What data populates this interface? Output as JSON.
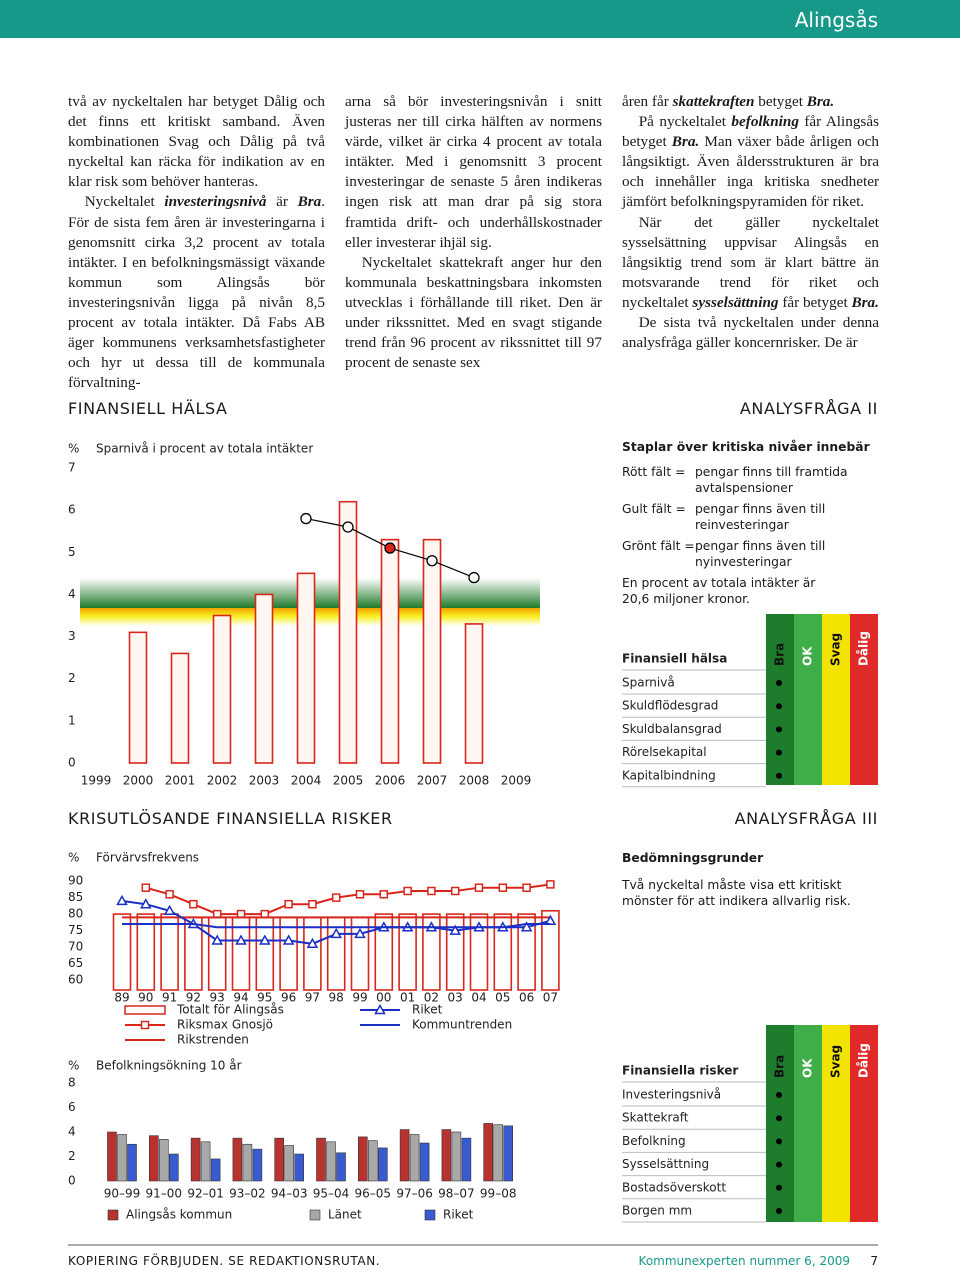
{
  "header": {
    "title": "Alingsås"
  },
  "body": {
    "columns": [
      [
        [
          "två av nyckeltalen har betyget Dålig och det finns ett kritiskt samband. Även kombinationen Svag och Dålig på två nyckeltal kan räcka för indikation av en klar risk som behöver hanteras."
        ],
        [
          "Nyckeltalet ",
          "investeringsnivå",
          " är ",
          "Bra",
          ". För de sista fem åren är investeringarna i genomsnitt cirka 3,2 procent av totala intäkter. I en befolkningsmässigt växande kommun som Alingsås bör investeringsnivån ligga på nivån 8,5 procent av totala intäkter. Då Fabs AB äger kommunens verksamhetsfastigheter och hyr ut dessa till de kommunala förvaltning-"
        ]
      ],
      [
        [
          "arna så bör investeringsnivån i snitt justeras ner till cirka hälften av normens värde, vilket är cirka 4 procent av totala intäkter. Med i genomsnitt 3 procent investeringar de senaste 5 åren indikeras ingen risk att man drar på sig stora framtida drift- och underhållskostnader eller investerar ihjäl sig."
        ],
        [
          "Nyckeltalet skattekraft anger hur den kommunala beskattningsbara inkomsten utvecklas i förhållande till riket. Den är under rikssnittet. Med en svagt stigande trend från 96 procent av rikssnittet till 97 procent de senaste sex"
        ]
      ],
      [
        [
          "åren får ",
          "skattekraften",
          " betyget ",
          "Bra."
        ],
        [
          "På nyckeltalet ",
          "befolkning",
          " får Alingsås betyget ",
          "Bra.",
          " Man växer både årligen och långsiktigt. Även åldersstrukturen är bra och innehåller inga kritiska snedheter jämfört befolkningspyramiden för riket."
        ],
        [
          "När det gäller nyckeltalet sysselsättning uppvisar Alingsås en långsiktig trend som är klart bättre än motsvarande trend för riket och nyckeltalet ",
          "sysselsättning",
          " får betyget ",
          "Bra."
        ],
        [
          "De sista två nyckeltalen under denna analysfråga gäller koncernrisker. De är"
        ]
      ]
    ]
  },
  "sections": {
    "left1": "FINANSIELL HÄLSA",
    "right1": "ANALYSFRÅGA II",
    "left2": "KRISUTLÖSANDE FINANSIELLA RISKER",
    "right2": "ANALYSFRÅGA III"
  },
  "chart_data": [
    {
      "type": "bar",
      "title": "Sparnivå i procent av totala intäkter",
      "y_label": "%",
      "categories": [
        "1999",
        "2000",
        "2001",
        "2002",
        "2003",
        "2004",
        "2005",
        "2006",
        "2007",
        "2008",
        "2009"
      ],
      "ylim": [
        0,
        7
      ],
      "yticks": [
        0,
        1,
        2,
        3,
        4,
        5,
        6,
        7
      ],
      "series": [
        {
          "type": "bar",
          "color": "#d9261c",
          "fill": "#fff6f2",
          "values": [
            null,
            3.1,
            2.6,
            3.5,
            4.0,
            4.5,
            6.2,
            5.3,
            5.3,
            3.3,
            null
          ]
        },
        {
          "type": "line",
          "marker": "circle",
          "color": "#000000",
          "values": [
            null,
            null,
            null,
            null,
            null,
            5.8,
            5.6,
            5.1,
            4.8,
            4.4,
            null
          ],
          "marker_colors": [
            null,
            null,
            null,
            null,
            null,
            "#ffffff",
            "#ffffff",
            "#d9261c",
            "#ffffff",
            "#ffffff",
            null
          ]
        }
      ]
    },
    {
      "type": "line",
      "title": "Förvärvsfrekvens",
      "y_label": "%",
      "categories": [
        "89",
        "90",
        "91",
        "92",
        "93",
        "94",
        "95",
        "96",
        "97",
        "98",
        "99",
        "00",
        "01",
        "02",
        "03",
        "04",
        "05",
        "06",
        "07"
      ],
      "ylim": [
        57,
        92
      ],
      "yticks": [
        60,
        65,
        70,
        75,
        80,
        85,
        90
      ],
      "series": [
        {
          "name": "Totalt för Alingsås",
          "type": "bar",
          "color": "#d9261c",
          "fill": "#ffffff",
          "values": [
            80,
            80,
            80,
            79,
            79,
            79,
            79,
            79,
            79,
            79,
            79,
            80,
            80,
            80,
            80,
            80,
            80,
            80,
            81
          ]
        },
        {
          "name": "Riksmax Gnosjö",
          "type": "line",
          "marker": "square",
          "color": "#d9261c",
          "values": [
            null,
            88,
            86,
            83,
            80,
            80,
            80,
            83,
            83,
            85,
            86,
            86,
            87,
            87,
            87,
            88,
            88,
            88,
            89
          ]
        },
        {
          "name": "Rikstrenden",
          "type": "line",
          "color": "#d9261c",
          "values": [
            79,
            79,
            79,
            79,
            79,
            79,
            79,
            79,
            79,
            79,
            79,
            79,
            79,
            79,
            79,
            79,
            79,
            79,
            79
          ]
        },
        {
          "name": "Riket",
          "type": "line",
          "marker": "triangle",
          "color": "#1a2fc4",
          "values": [
            84,
            83,
            81,
            77,
            72,
            72,
            72,
            72,
            71,
            74,
            74,
            76,
            76,
            76,
            75,
            76,
            76,
            76,
            78
          ]
        },
        {
          "name": "Kommuntrenden",
          "type": "line",
          "color": "#1a2fc4",
          "values": [
            77,
            77,
            77,
            77,
            76,
            76,
            76,
            76,
            76,
            76,
            76,
            76,
            76,
            76,
            76,
            76,
            76,
            77,
            77
          ]
        }
      ]
    },
    {
      "type": "bar",
      "title": "Befolkningsökning 10 år",
      "y_label": "%",
      "categories": [
        "90–99",
        "91–00",
        "92–01",
        "93–02",
        "94–03",
        "95–04",
        "96–05",
        "97–06",
        "98–07",
        "99–08"
      ],
      "ylim": [
        0,
        8
      ],
      "yticks": [
        0,
        2,
        4,
        6,
        8
      ],
      "series": [
        {
          "name": "Alingsås kommun",
          "type": "bar",
          "color": "#b8322f",
          "values": [
            4.0,
            3.7,
            3.5,
            3.5,
            3.5,
            3.5,
            3.6,
            4.2,
            4.2,
            4.7
          ]
        },
        {
          "name": "Länet",
          "type": "bar",
          "color": "#a8a8a8",
          "values": [
            3.8,
            3.4,
            3.2,
            3.0,
            2.9,
            3.2,
            3.3,
            3.8,
            4.0,
            4.6
          ]
        },
        {
          "name": "Riket",
          "type": "bar",
          "color": "#3a5bd0",
          "values": [
            3.0,
            2.2,
            1.8,
            2.6,
            2.2,
            2.3,
            2.7,
            3.1,
            3.5,
            4.5
          ]
        }
      ]
    }
  ],
  "legend_box": {
    "title": "Staplar över kritiska nivåer innebär",
    "rows": [
      {
        "label": "Rött fält =",
        "text": "pengar finns till framtida avtalspensioner"
      },
      {
        "label": "Gult fält =",
        "text": "pengar finns även till reinvesteringar"
      },
      {
        "label": "Grönt fält =",
        "text": "pengar finns även till nyinvesteringar"
      }
    ],
    "note": "En procent av totala intäkter är 20,6 miljoner kronor."
  },
  "criteria": {
    "title": "Bedömningsgrunder",
    "text": "Två nyckeltal måste visa ett kritiskt mönster för att indikera allvarlig risk."
  },
  "tables": [
    {
      "title": "Finansiell hälsa",
      "columns": [
        "Bra",
        "OK",
        "Svag",
        "Dålig"
      ],
      "column_colors": [
        "#1d7d2c",
        "#3fae49",
        "#f2e300",
        "#e02a2a"
      ],
      "rows": [
        "Sparnivå",
        "Skuldflödesgrad",
        "Skuldbalansgrad",
        "Rörelsekapital",
        "Kapitalbindning"
      ]
    },
    {
      "title": "Finansiella risker",
      "columns": [
        "Bra",
        "OK",
        "Svag",
        "Dålig"
      ],
      "column_colors": [
        "#1d7d2c",
        "#3fae49",
        "#f2e300",
        "#e02a2a"
      ],
      "rows": [
        "Investeringsnivå",
        "Skattekraft",
        "Befolkning",
        "Sysselsättning",
        "Bostadsöverskott",
        "Borgen mm"
      ]
    }
  ],
  "footer": {
    "left": "KOPIERING FÖRBJUDEN. SE REDAKTIONSRUTAN.",
    "publication": "Kommunexperten nummer 6, 2009",
    "page": "7"
  }
}
